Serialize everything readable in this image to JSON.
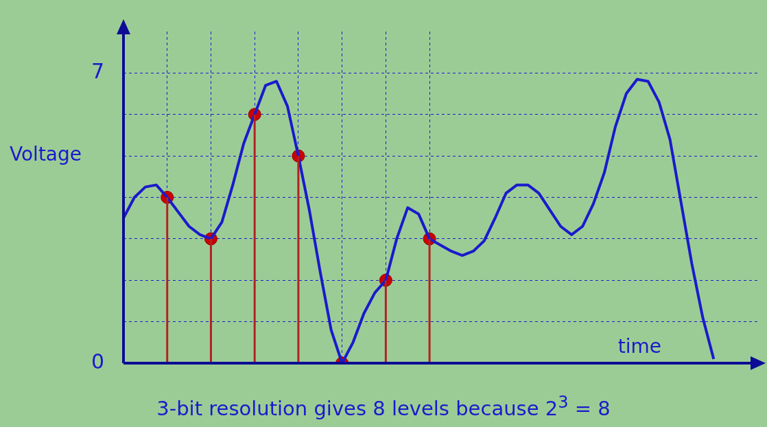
{
  "chart_data": {
    "type": "line",
    "xlabel": "time",
    "ylabel": "Voltage",
    "annotations": [
      "3-bit resolution gives 8 levels because 2$^{3}$ = 8"
    ],
    "categories": [
      null,
      null,
      null,
      null,
      null,
      null,
      null,
      null,
      null,
      null,
      null,
      null,
      null,
      null,
      null,
      null,
      null,
      null,
      null,
      null,
      null,
      null,
      null,
      null,
      null,
      null,
      null,
      null,
      null,
      null,
      null,
      null,
      null,
      null,
      null,
      null,
      null,
      null,
      null,
      null,
      null,
      null,
      null,
      null,
      null,
      null,
      null,
      null,
      null,
      null,
      null,
      null,
      null,
      null,
      null,
      null,
      null,
      null,
      null
    ],
    "ylim": [
      0,
      8
    ],
    "yticks": [
      0,
      {
        "value": 1,
        "label": null
      },
      {
        "value": 2,
        "label": null
      },
      {
        "value": 3,
        "label": null
      },
      {
        "value": 4,
        "label": null
      },
      {
        "value": 5,
        "label": null
      },
      {
        "value": 6,
        "label": null
      },
      7
    ],
    "grid": true,
    "tick_labels": "y",
    "legend": false,
    "series": [
      {
        "color": "#1a1acc",
        "values": [
          3.5,
          4.0,
          4.25,
          4.3,
          4.0,
          3.65,
          3.3,
          3.1,
          3.0,
          3.4,
          4.3,
          5.3,
          6.0,
          6.7,
          6.8,
          6.2,
          5.0,
          3.7,
          2.2,
          0.8,
          0,
          0.5,
          1.2,
          1.7,
          2.0,
          3.0,
          3.75,
          3.6,
          3.0,
          2.85,
          2.7,
          2.6,
          2.7,
          2.95,
          3.5,
          4.1,
          4.3,
          4.3,
          4.1,
          3.7,
          3.3,
          3.1,
          3.3,
          3.85,
          4.6,
          5.7,
          6.5,
          6.85,
          6.8,
          6.3,
          5.4,
          3.9,
          2.4,
          1.1,
          0.1,
          null,
          null,
          null,
          null
        ]
      },
      {
        "type": "lollipop",
        "color": "#cc0000",
        "marker": "circle",
        "values": [
          null,
          null,
          null,
          null,
          4,
          null,
          null,
          null,
          3,
          null,
          null,
          null,
          6,
          null,
          null,
          null,
          5,
          null,
          null,
          null,
          0,
          null,
          null,
          null,
          2,
          null,
          null,
          null,
          3,
          null,
          null,
          null,
          null,
          null,
          null,
          null,
          null,
          null,
          null,
          null,
          null,
          null,
          null,
          null,
          null,
          null,
          null,
          null,
          null,
          null,
          null,
          null,
          null,
          null,
          null,
          null,
          null,
          null,
          null
        ]
      }
    ]
  }
}
